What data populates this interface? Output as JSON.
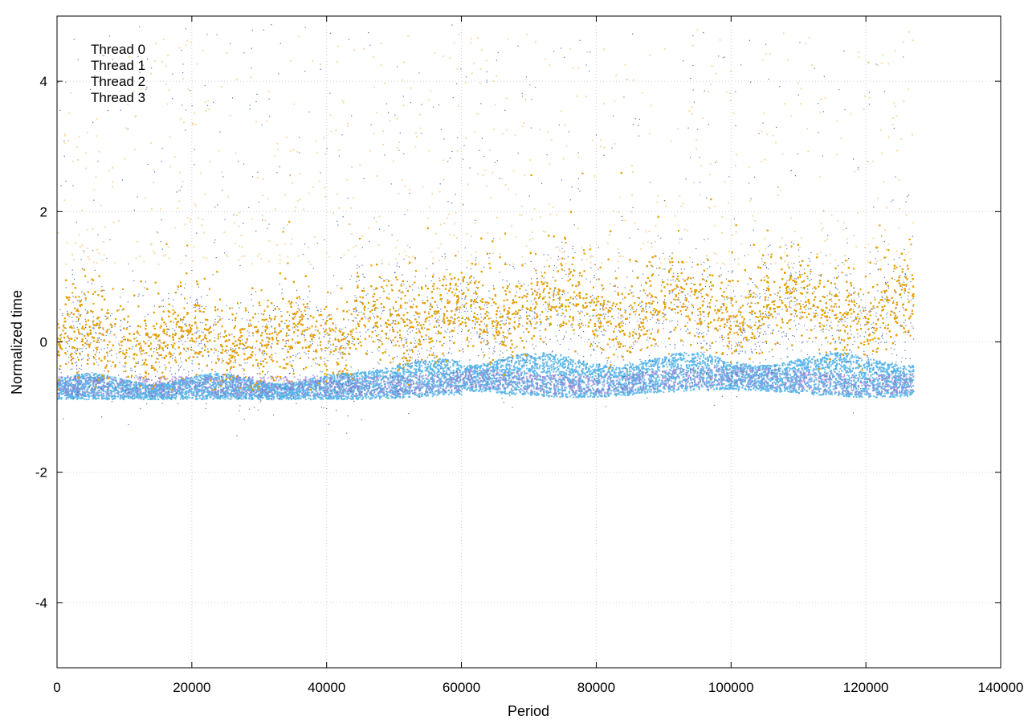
{
  "chart_data": {
    "type": "scatter",
    "title": "",
    "xlabel": "Period",
    "ylabel": "Normalized time",
    "xlim": [
      0,
      140000
    ],
    "ylim": [
      -5,
      5
    ],
    "x_ticks": [
      0,
      20000,
      40000,
      60000,
      80000,
      100000,
      120000,
      140000
    ],
    "x_tick_labels": [
      "0",
      "20000",
      "40000",
      "60000",
      "80000",
      "100000",
      "120000",
      "140000"
    ],
    "y_ticks": [
      -4,
      -2,
      0,
      2,
      4
    ],
    "y_tick_labels": [
      "-4",
      "-2",
      "0",
      "2",
      "4"
    ],
    "grid": true,
    "legend_position": "top-left",
    "x_max_period": 127000,
    "series": [
      {
        "name": "Thread 0",
        "color": "#1f4e9a",
        "summary": {
          "typical_min": -0.85,
          "typical_max": 0.8,
          "outlier_max": 4.9
        }
      },
      {
        "name": "Thread 1",
        "color": "#9a7fd1",
        "summary": {
          "typical_min": -0.85,
          "typical_max": -0.3
        }
      },
      {
        "name": "Thread 2",
        "color": "#56b4e9",
        "summary": {
          "typical_min": -0.9,
          "typical_max": -0.2
        }
      },
      {
        "name": "Thread 3",
        "color": "#e69f00",
        "summary": {
          "typical_min": -0.5,
          "typical_max": 1.2,
          "outlier_max": 4.8
        }
      }
    ]
  }
}
